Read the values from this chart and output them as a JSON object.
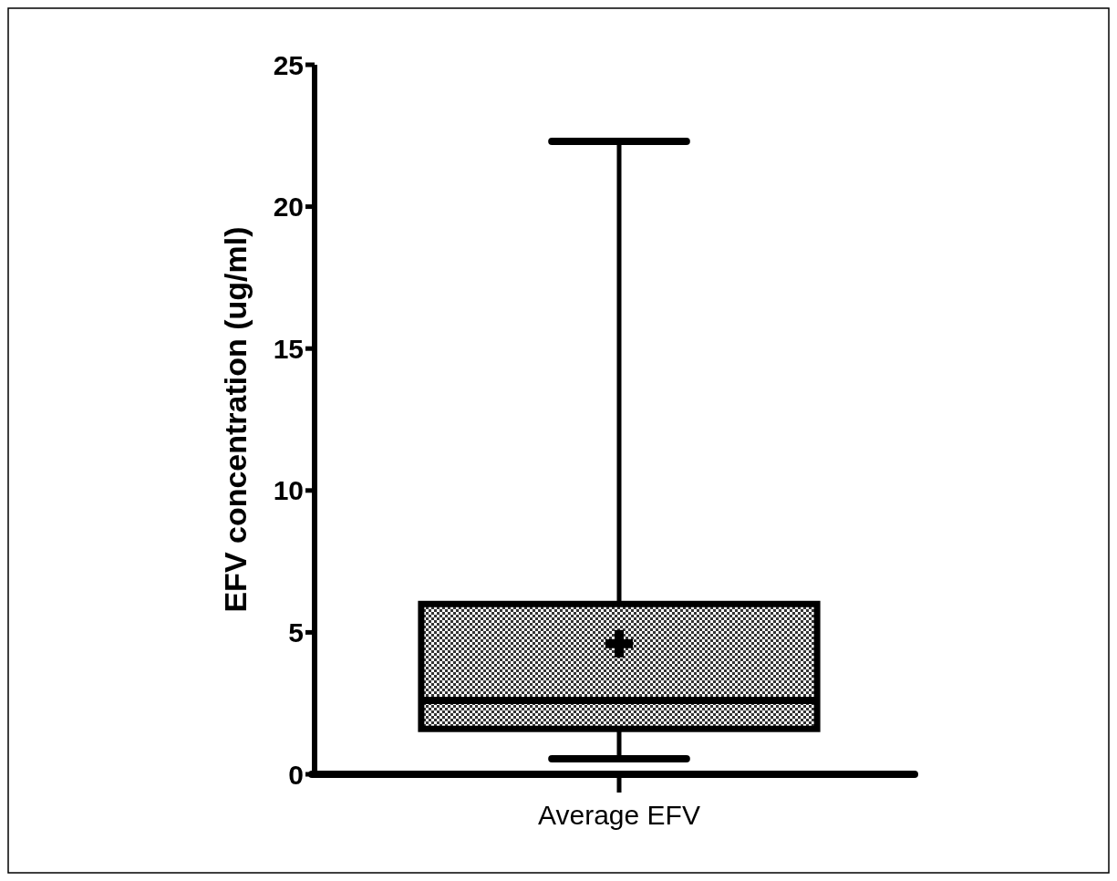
{
  "chart_data": {
    "type": "box",
    "ylabel": "EFV concentration (ug/ml)",
    "categories": [
      "Average EFV"
    ],
    "boxes": [
      {
        "low": 0.55,
        "q1": 1.6,
        "median": 2.6,
        "q3": 6.0,
        "high": 22.3,
        "mean": 4.6
      }
    ],
    "ylim": [
      0,
      25
    ],
    "yticks": [
      0,
      5,
      10,
      15,
      20,
      25
    ],
    "grid": false
  }
}
